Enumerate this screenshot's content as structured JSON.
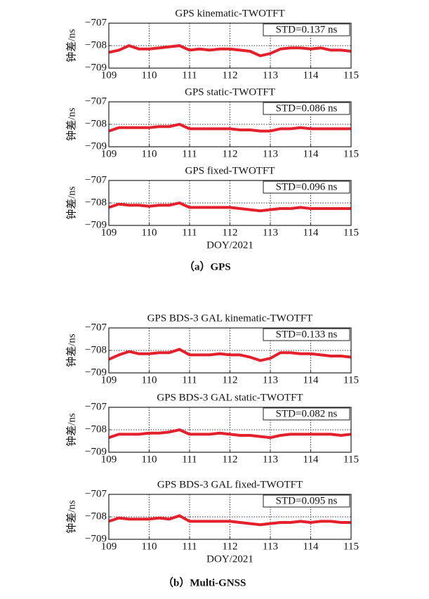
{
  "chart_data": [
    {
      "type": "line",
      "title": "GPS kinematic-TWOTFT",
      "y_label": "钟差/ns",
      "annotation": "STD=0.137 ns",
      "x": [
        109,
        109.25,
        109.5,
        109.75,
        110,
        110.25,
        110.5,
        110.75,
        111,
        111.25,
        111.5,
        111.75,
        112,
        112.25,
        112.5,
        112.75,
        113,
        113.25,
        113.5,
        113.75,
        114,
        114.25,
        114.5,
        114.75,
        115
      ],
      "series": [
        {
          "color": "#e3202b",
          "values": [
            -708.3,
            -708.2,
            -708.0,
            -708.15,
            -708.15,
            -708.1,
            -708.05,
            -708.0,
            -708.2,
            -708.15,
            -708.2,
            -708.15,
            -708.15,
            -708.2,
            -708.25,
            -708.45,
            -708.35,
            -708.15,
            -708.1,
            -708.1,
            -708.15,
            -708.1,
            -708.2,
            -708.2,
            -708.25
          ]
        }
      ],
      "xlim": [
        109,
        115
      ],
      "xticks": [
        109,
        110,
        111,
        112,
        113,
        114,
        115
      ],
      "ylim": [
        -709,
        -707
      ],
      "yticks": [
        {
          "value": -709,
          "label": "−709"
        },
        {
          "value": -708,
          "label": "−708"
        },
        {
          "value": -707,
          "label": "−707"
        }
      ],
      "grid": true
    },
    {
      "type": "line",
      "title": "GPS static-TWOTFT",
      "y_label": "钟差/ns",
      "annotation": "STD=0.086 ns",
      "x": [
        109,
        109.25,
        109.5,
        109.75,
        110,
        110.25,
        110.5,
        110.75,
        111,
        111.25,
        111.5,
        111.75,
        112,
        112.25,
        112.5,
        112.75,
        113,
        113.25,
        113.5,
        113.75,
        114,
        114.25,
        114.5,
        114.75,
        115
      ],
      "series": [
        {
          "color": "#e3202b",
          "values": [
            -708.3,
            -708.15,
            -708.15,
            -708.15,
            -708.15,
            -708.1,
            -708.1,
            -708.0,
            -708.2,
            -708.2,
            -708.2,
            -708.2,
            -708.2,
            -708.25,
            -708.25,
            -708.3,
            -708.3,
            -708.2,
            -708.2,
            -708.15,
            -708.2,
            -708.2,
            -708.2,
            -708.2,
            -708.2
          ]
        }
      ],
      "xlim": [
        109,
        115
      ],
      "xticks": [
        109,
        110,
        111,
        112,
        113,
        114,
        115
      ],
      "ylim": [
        -709,
        -707
      ],
      "yticks": [
        {
          "value": -709,
          "label": "−709"
        },
        {
          "value": -708,
          "label": "−708"
        },
        {
          "value": -707,
          "label": "−707"
        }
      ],
      "grid": true
    },
    {
      "type": "line",
      "title": "GPS fixed-TWOTFT",
      "y_label": "钟差/ns",
      "x_label": "DOY/2021",
      "annotation": "STD=0.096 ns",
      "x": [
        109,
        109.25,
        109.5,
        109.75,
        110,
        110.25,
        110.5,
        110.75,
        111,
        111.25,
        111.5,
        111.75,
        112,
        112.25,
        112.5,
        112.75,
        113,
        113.25,
        113.5,
        113.75,
        114,
        114.25,
        114.5,
        114.75,
        115
      ],
      "series": [
        {
          "color": "#e3202b",
          "values": [
            -708.2,
            -708.05,
            -708.1,
            -708.1,
            -708.15,
            -708.1,
            -708.1,
            -708.0,
            -708.2,
            -708.2,
            -708.2,
            -708.2,
            -708.2,
            -708.25,
            -708.3,
            -708.35,
            -708.3,
            -708.25,
            -708.25,
            -708.2,
            -708.25,
            -708.25,
            -708.25,
            -708.25,
            -708.25
          ]
        }
      ],
      "xlim": [
        109,
        115
      ],
      "xticks": [
        109,
        110,
        111,
        112,
        113,
        114,
        115
      ],
      "ylim": [
        -709,
        -707
      ],
      "yticks": [
        {
          "value": -709,
          "label": "−709"
        },
        {
          "value": -708,
          "label": "−708"
        },
        {
          "value": -707,
          "label": "−707"
        }
      ],
      "grid": true
    },
    {
      "type": "line",
      "title": "GPS BDS-3 GAL kinematic-TWOTFT",
      "y_label": "钟差/ns",
      "annotation": "STD=0.133 ns",
      "x": [
        109,
        109.25,
        109.5,
        109.75,
        110,
        110.25,
        110.5,
        110.75,
        111,
        111.25,
        111.5,
        111.75,
        112,
        112.25,
        112.5,
        112.75,
        113,
        113.25,
        113.5,
        113.75,
        114,
        114.25,
        114.5,
        114.75,
        115
      ],
      "series": [
        {
          "color": "#e3202b",
          "values": [
            -708.4,
            -708.2,
            -708.05,
            -708.15,
            -708.15,
            -708.1,
            -708.1,
            -707.95,
            -708.2,
            -708.2,
            -708.2,
            -708.15,
            -708.2,
            -708.2,
            -708.3,
            -708.45,
            -708.35,
            -708.1,
            -708.1,
            -708.15,
            -708.15,
            -708.2,
            -708.25,
            -708.25,
            -708.3
          ]
        }
      ],
      "xlim": [
        109,
        115
      ],
      "xticks": [
        109,
        110,
        111,
        112,
        113,
        114,
        115
      ],
      "ylim": [
        -709,
        -707
      ],
      "yticks": [
        {
          "value": -709,
          "label": "−709"
        },
        {
          "value": -708,
          "label": "−708"
        },
        {
          "value": -707,
          "label": "−707"
        }
      ],
      "grid": true
    },
    {
      "type": "line",
      "title": "GPS BDS-3 GAL static-TWOTFT",
      "y_label": "钟差/ns",
      "annotation": "STD=0.082 ns",
      "x": [
        109,
        109.25,
        109.5,
        109.75,
        110,
        110.25,
        110.5,
        110.75,
        111,
        111.25,
        111.5,
        111.75,
        112,
        112.25,
        112.5,
        112.75,
        113,
        113.25,
        113.5,
        113.75,
        114,
        114.25,
        114.5,
        114.75,
        115
      ],
      "series": [
        {
          "color": "#e3202b",
          "values": [
            -708.35,
            -708.2,
            -708.2,
            -708.2,
            -708.15,
            -708.15,
            -708.1,
            -708.0,
            -708.2,
            -708.2,
            -708.2,
            -708.15,
            -708.2,
            -708.25,
            -708.25,
            -708.3,
            -708.35,
            -708.25,
            -708.2,
            -708.2,
            -708.2,
            -708.2,
            -708.2,
            -708.25,
            -708.2
          ]
        }
      ],
      "xlim": [
        109,
        115
      ],
      "xticks": [
        109,
        110,
        111,
        112,
        113,
        114,
        115
      ],
      "ylim": [
        -709,
        -707
      ],
      "yticks": [
        {
          "value": -709,
          "label": "−709"
        },
        {
          "value": -708,
          "label": "−708"
        },
        {
          "value": -707,
          "label": "−707"
        }
      ],
      "grid": true
    },
    {
      "type": "line",
      "title": "GPS BDS-3 GAL fixed-TWOTFT",
      "y_label": "钟差/ns",
      "x_label": "DOY/2021",
      "annotation": "STD=0.095 ns",
      "x": [
        109,
        109.25,
        109.5,
        109.75,
        110,
        110.25,
        110.5,
        110.75,
        111,
        111.25,
        111.5,
        111.75,
        112,
        112.25,
        112.5,
        112.75,
        113,
        113.25,
        113.5,
        113.75,
        114,
        114.25,
        114.5,
        114.75,
        115
      ],
      "series": [
        {
          "color": "#e3202b",
          "values": [
            -708.2,
            -708.05,
            -708.1,
            -708.1,
            -708.1,
            -708.05,
            -708.1,
            -707.95,
            -708.2,
            -708.2,
            -708.2,
            -708.2,
            -708.2,
            -708.25,
            -708.3,
            -708.35,
            -708.3,
            -708.25,
            -708.25,
            -708.2,
            -708.25,
            -708.2,
            -708.2,
            -708.25,
            -708.25
          ]
        }
      ],
      "xlim": [
        109,
        115
      ],
      "xticks": [
        109,
        110,
        111,
        112,
        113,
        114,
        115
      ],
      "ylim": [
        -709,
        -707
      ],
      "yticks": [
        {
          "value": -709,
          "label": "−709"
        },
        {
          "value": -708,
          "label": "−708"
        },
        {
          "value": -707,
          "label": "−707"
        }
      ],
      "grid": true
    }
  ],
  "captions": [
    "（a）GPS",
    "（b）Multi-GNSS"
  ]
}
